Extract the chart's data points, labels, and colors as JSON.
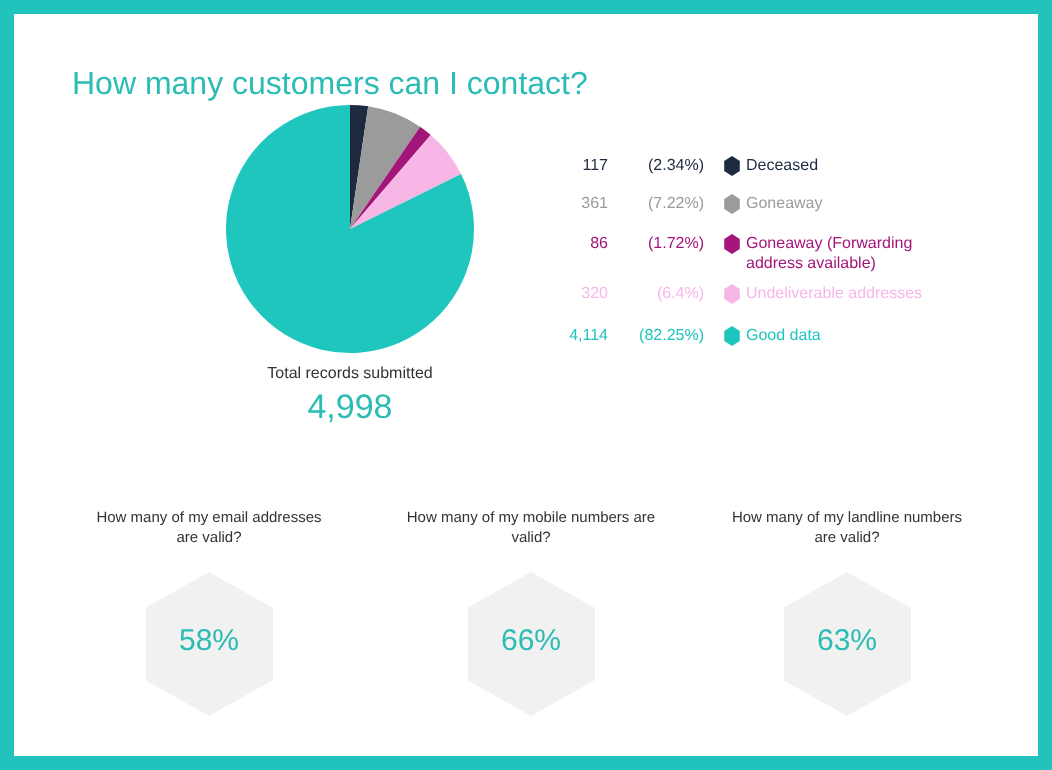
{
  "chart_data": [
    {
      "type": "pie",
      "title": "How many customers can I contact?",
      "categories": [
        "Deceased",
        "Goneaway",
        "Goneaway (Forwarding address available)",
        "Undeliverable addresses",
        "Good data"
      ],
      "values": [
        117,
        361,
        86,
        320,
        4114
      ],
      "colors": [
        "#1d2a3f",
        "#9b9b9b",
        "#a4157a",
        "#f7b6e6",
        "#1ec6bd"
      ],
      "value_labels": [
        "117",
        "361",
        "86",
        "320",
        "4,114"
      ],
      "legend": "right",
      "annotations": [
        {
          "text": "(2.34%)",
          "x": "Deceased"
        },
        {
          "text": "(7.22%)",
          "x": "Goneaway"
        },
        {
          "text": "(1.72%)",
          "x": "Goneaway (Forwarding address available)"
        },
        {
          "text": "(6.4%)",
          "x": "Undeliverable addresses"
        },
        {
          "text": "(82.25%)",
          "x": "Good data"
        },
        "Total records submitted",
        "4,998"
      ]
    },
    {
      "type": "other",
      "annotations": [
        "How many of my email addresses are valid?",
        "58%",
        "How many of my mobile numbers are valid?",
        "66%",
        "How many of my landline numbers are valid?",
        "63%"
      ]
    }
  ]
}
